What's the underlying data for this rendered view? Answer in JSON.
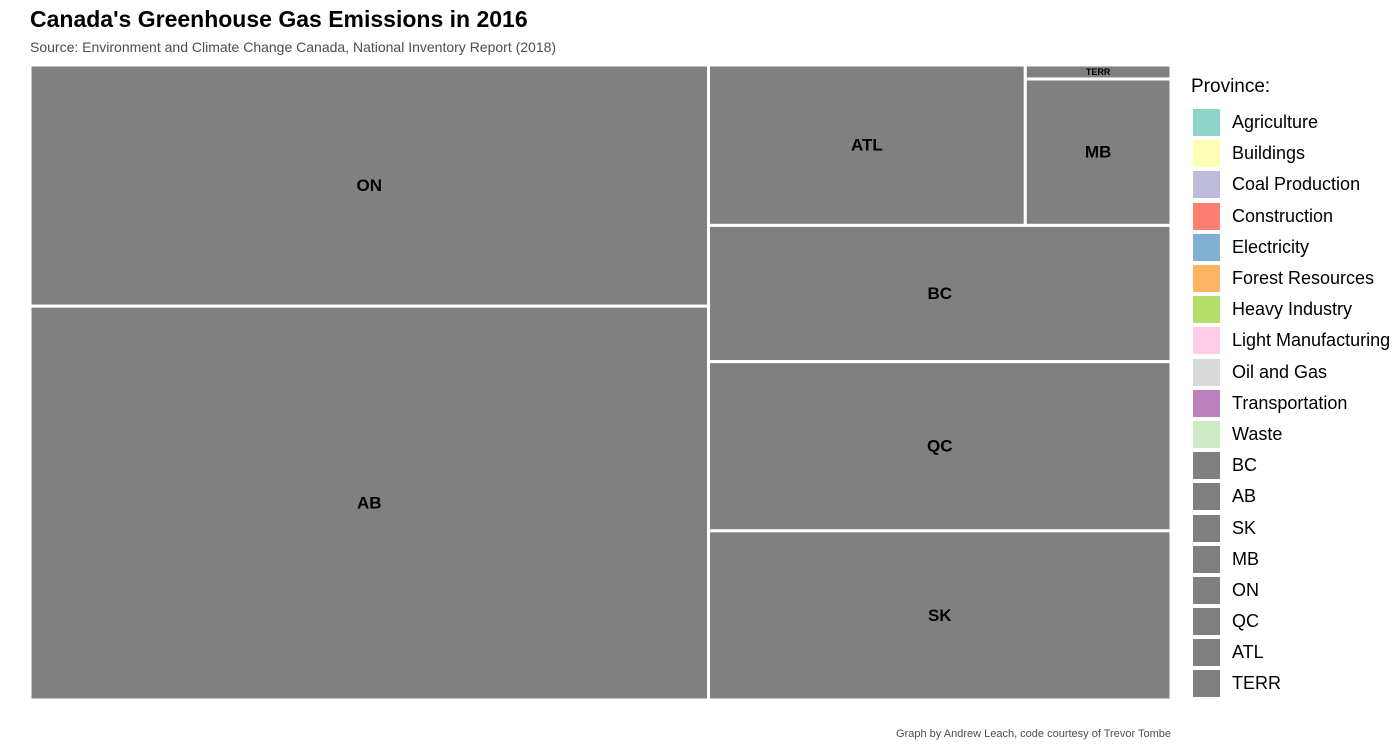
{
  "header": {
    "title": "Canada's Greenhouse Gas Emissions in 2016",
    "subtitle": "Source: Environment and Climate Change Canada, National Inventory Report (2018)"
  },
  "footer": {
    "caption": "Graph by Andrew Leach, code courtesy of Trevor Tombe"
  },
  "chart_data": {
    "type": "treemap",
    "title": "Canada's Greenhouse Gas Emissions in 2016",
    "legend_title": "Province:",
    "legend_placement": "right",
    "tiles": [
      {
        "label": "ON",
        "value": 161,
        "color": "#808080"
      },
      {
        "label": "AB",
        "value": 263,
        "color": "#808080"
      },
      {
        "label": "ATL",
        "value": 50,
        "color": "#808080"
      },
      {
        "label": "MB",
        "value": 21,
        "color": "#808080"
      },
      {
        "label": "TERR",
        "value": 2,
        "color": "#808080"
      },
      {
        "label": "BC",
        "value": 62,
        "color": "#808080"
      },
      {
        "label": "QC",
        "value": 77,
        "color": "#808080"
      },
      {
        "label": "SK",
        "value": 77,
        "color": "#808080"
      }
    ],
    "legend": [
      {
        "label": "Agriculture",
        "color": "#8DD3C7"
      },
      {
        "label": "Buildings",
        "color": "#FFFFB3"
      },
      {
        "label": "Coal Production",
        "color": "#BEBADA"
      },
      {
        "label": "Construction",
        "color": "#FB8072"
      },
      {
        "label": "Electricity",
        "color": "#80B1D3"
      },
      {
        "label": "Forest Resources",
        "color": "#FDB462"
      },
      {
        "label": "Heavy Industry",
        "color": "#B3DE69"
      },
      {
        "label": "Light Manufacturing",
        "color": "#FCCDE5"
      },
      {
        "label": "Oil and Gas",
        "color": "#D9D9D9"
      },
      {
        "label": "Transportation",
        "color": "#BC80BD"
      },
      {
        "label": "Waste",
        "color": "#CCEBC5"
      },
      {
        "label": "BC",
        "color": "#808080"
      },
      {
        "label": "AB",
        "color": "#808080"
      },
      {
        "label": "SK",
        "color": "#808080"
      },
      {
        "label": "MB",
        "color": "#808080"
      },
      {
        "label": "ON",
        "color": "#808080"
      },
      {
        "label": "QC",
        "color": "#808080"
      },
      {
        "label": "ATL",
        "color": "#808080"
      },
      {
        "label": "TERR",
        "color": "#808080"
      }
    ]
  }
}
